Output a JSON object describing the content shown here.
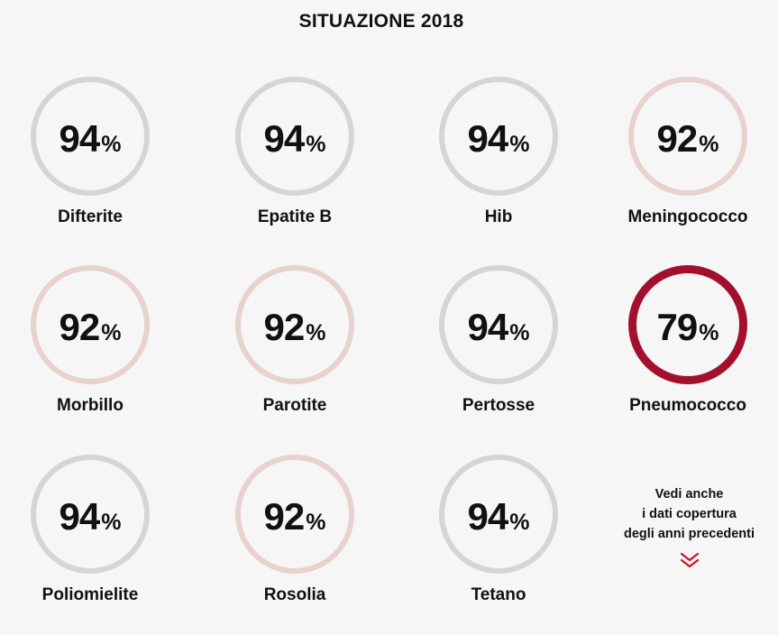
{
  "title": "SITUAZIONE 2018",
  "percent_sign": "%",
  "colors": {
    "ring_default": "#d5d5d9",
    "ring_92": "#e7d2cf",
    "ring_alert": "#a2102e",
    "background": "#f6f6f6"
  },
  "vaccines": [
    {
      "name": "Difterite",
      "value": "94"
    },
    {
      "name": "Epatite B",
      "value": "94"
    },
    {
      "name": "Hib",
      "value": "94"
    },
    {
      "name": "Meningococco",
      "value": "92"
    },
    {
      "name": "Morbillo",
      "value": "92"
    },
    {
      "name": "Parotite",
      "value": "92"
    },
    {
      "name": "Pertosse",
      "value": "94"
    },
    {
      "name": "Pneumococco",
      "value": "79"
    },
    {
      "name": "Poliomielite",
      "value": "94"
    },
    {
      "name": "Rosolia",
      "value": "92"
    },
    {
      "name": "Tetano",
      "value": "94"
    }
  ],
  "see_also": {
    "lines": [
      "Vedi anche",
      "i dati copertura",
      "degli anni precedenti"
    ],
    "icon": "double-chevron-down-icon"
  }
}
